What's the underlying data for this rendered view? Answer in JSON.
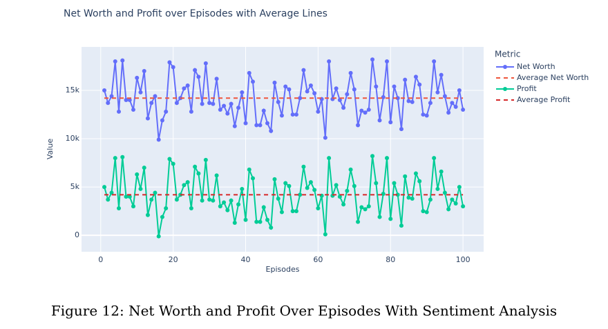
{
  "chart_data": {
    "type": "line",
    "title": "Net Worth and Profit over Episodes with Average Lines",
    "caption": "Figure 12: Net Worth and Profit Over Episodes With Sentiment Analysis",
    "xlabel": "Episodes",
    "ylabel": "Value",
    "legend_title": "Metric",
    "x": [
      1,
      2,
      3,
      4,
      5,
      6,
      7,
      8,
      9,
      10,
      11,
      12,
      13,
      14,
      15,
      16,
      17,
      18,
      19,
      20,
      21,
      22,
      23,
      24,
      25,
      26,
      27,
      28,
      29,
      30,
      31,
      32,
      33,
      34,
      35,
      36,
      37,
      38,
      39,
      40,
      41,
      42,
      43,
      44,
      45,
      46,
      47,
      48,
      49,
      50,
      51,
      52,
      53,
      54,
      55,
      56,
      57,
      58,
      59,
      60,
      61,
      62,
      63,
      64,
      65,
      66,
      67,
      68,
      69,
      70,
      71,
      72,
      73,
      74,
      75,
      76,
      77,
      78,
      79,
      80,
      81,
      82,
      83,
      84,
      85,
      86,
      87,
      88,
      89,
      90,
      91,
      92,
      93,
      94,
      95,
      96,
      97,
      98,
      99,
      100
    ],
    "series": [
      {
        "name": "Net Worth",
        "color": "#636efa",
        "markers": true,
        "values": [
          15000,
          13700,
          14400,
          18000,
          12800,
          18100,
          14000,
          14000,
          13000,
          16300,
          14800,
          17000,
          12100,
          13700,
          14400,
          9900,
          11900,
          12800,
          17900,
          17400,
          13700,
          14200,
          15200,
          15500,
          12800,
          17100,
          16400,
          13600,
          17800,
          13700,
          13600,
          16200,
          13000,
          13400,
          12600,
          13600,
          11300,
          13200,
          14800,
          11600,
          16800,
          15900,
          11400,
          11400,
          12900,
          11600,
          10800,
          15800,
          13800,
          12400,
          15400,
          15100,
          12500,
          12500,
          14200,
          17100,
          14900,
          15500,
          14700,
          12800,
          14100,
          10100,
          18000,
          14100,
          15200,
          14000,
          13200,
          14600,
          16800,
          15100,
          11400,
          12900,
          12700,
          13000,
          18200,
          15400,
          11900,
          14300,
          18000,
          11700,
          15400,
          14200,
          11000,
          16100,
          13900,
          13800,
          16400,
          15600,
          12500,
          12400,
          13700,
          18000,
          14800,
          16600,
          14400,
          12700,
          13700,
          13300,
          15000,
          13000
        ]
      },
      {
        "name": "Average Net Worth",
        "color": "#ef553b",
        "dash": true,
        "x": [
          1,
          100
        ],
        "values": [
          14200,
          14200
        ]
      },
      {
        "name": "Profit",
        "color": "#00cc96",
        "markers": true,
        "values": [
          5000,
          3700,
          4400,
          8000,
          2800,
          8100,
          4000,
          4000,
          3000,
          6300,
          4800,
          7000,
          2100,
          3700,
          4400,
          -100,
          1900,
          2800,
          7900,
          7400,
          3700,
          4200,
          5200,
          5500,
          2800,
          7100,
          6400,
          3600,
          7800,
          3700,
          3600,
          6200,
          3000,
          3400,
          2600,
          3600,
          1300,
          3200,
          4800,
          1600,
          6800,
          5900,
          1400,
          1400,
          2900,
          1600,
          800,
          5800,
          3800,
          2400,
          5400,
          5100,
          2500,
          2500,
          4200,
          7100,
          4900,
          5500,
          4700,
          2800,
          4100,
          100,
          8000,
          4100,
          5200,
          4000,
          3200,
          4600,
          6800,
          5100,
          1400,
          2900,
          2700,
          3000,
          8200,
          5400,
          1900,
          4300,
          8000,
          1700,
          5400,
          4200,
          1000,
          6100,
          3900,
          3800,
          6400,
          5600,
          2500,
          2400,
          3700,
          8000,
          4800,
          6600,
          4400,
          2700,
          3700,
          3300,
          5000,
          3000
        ]
      },
      {
        "name": "Average Profit",
        "color": "#d62728",
        "dash": true,
        "x": [
          1,
          100
        ],
        "values": [
          4200,
          4200
        ]
      }
    ],
    "xlim": [
      -5.3,
      105.7
    ],
    "ylim": [
      -1700,
      19500
    ],
    "xticks": [
      0,
      20,
      40,
      60,
      80,
      100
    ],
    "yticks": [
      0,
      {
        "value": 5000,
        "label": "5k"
      },
      {
        "value": 10000,
        "label": "10k"
      },
      {
        "value": 15000,
        "label": "15k"
      }
    ],
    "grid": true
  }
}
